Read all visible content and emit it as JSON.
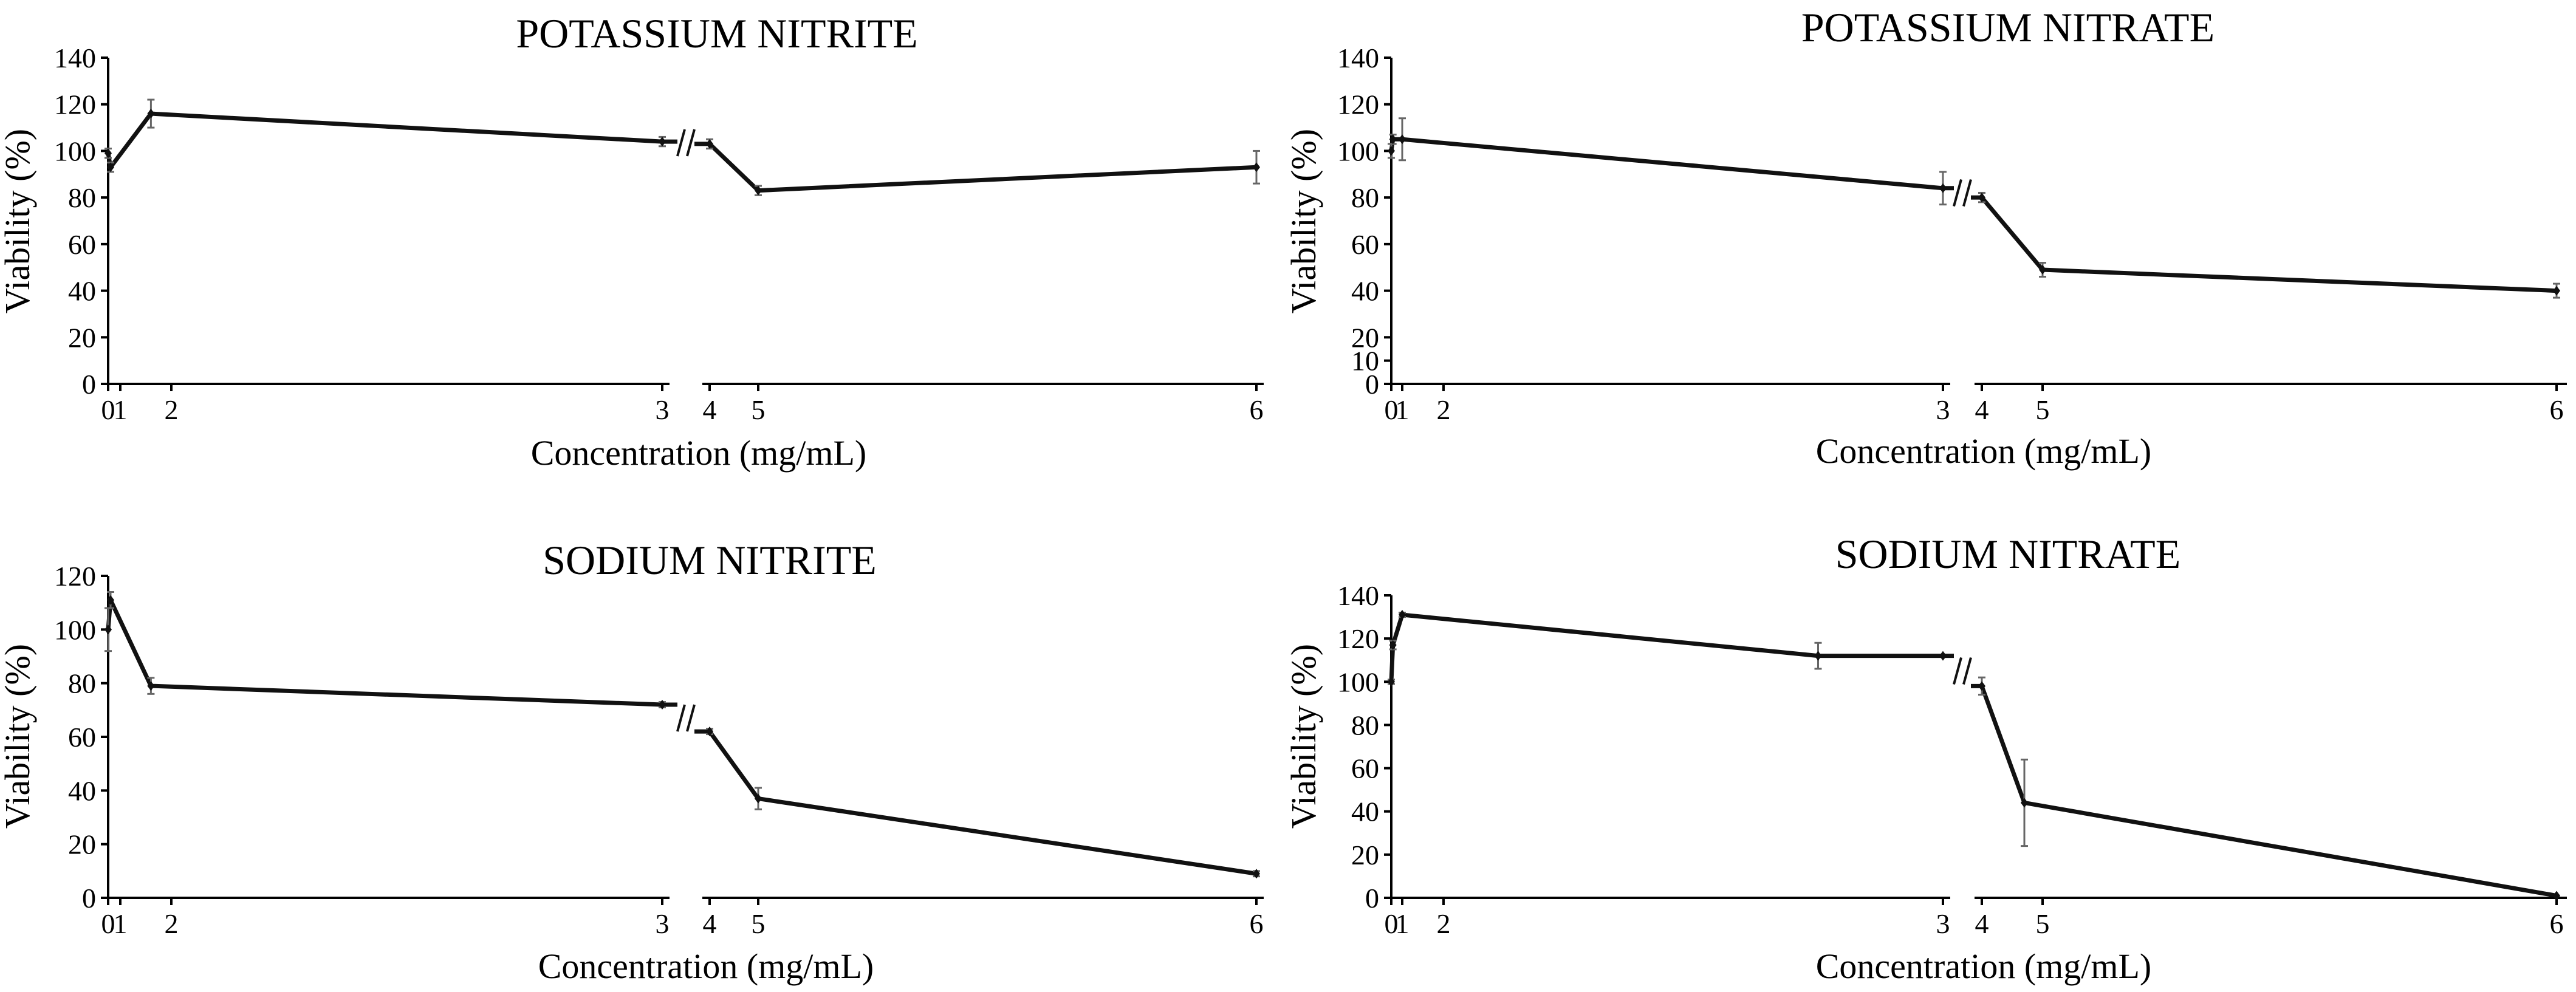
{
  "chart_data": [
    {
      "type": "line",
      "title": "POTASSIUM NITRITE",
      "xlabel": "Concentration (mg/mL)",
      "ylabel": "Viability (%)",
      "ylim": [
        0,
        140
      ],
      "yticks": [
        0,
        20,
        40,
        60,
        80,
        100,
        120,
        140
      ],
      "xticks": [
        0,
        1,
        2,
        3,
        4,
        5,
        6
      ],
      "grid": false,
      "axis_break_between": [
        3,
        4
      ],
      "series": [
        {
          "name": "Viability",
          "x": [
            0,
            0.2,
            1.6,
            3.0,
            4.0,
            5.0,
            6.0
          ],
          "y": [
            99,
            93,
            116,
            104,
            103,
            83,
            93
          ],
          "err": [
            2,
            2,
            6,
            2,
            2,
            2,
            7
          ]
        }
      ]
    },
    {
      "type": "line",
      "title": "POTASSIUM NITRATE",
      "xlabel": "Concentration (mg/mL)",
      "ylabel": "Viability (%)",
      "ylim": [
        0,
        140
      ],
      "yticks": [
        0,
        10,
        20,
        40,
        60,
        80,
        100,
        120,
        140
      ],
      "xticks": [
        0,
        1,
        2,
        3,
        4,
        5,
        6
      ],
      "grid": false,
      "axis_break_between": [
        3,
        4
      ],
      "series": [
        {
          "name": "Viability",
          "x": [
            0,
            0.15,
            1.0,
            3.0,
            4.0,
            5.0,
            6.0
          ],
          "y": [
            100,
            105,
            105,
            84,
            80,
            49,
            40
          ],
          "err": [
            3,
            2,
            9,
            7,
            2,
            3,
            3
          ]
        }
      ]
    },
    {
      "type": "line",
      "title": "SODIUM NITRITE",
      "xlabel": "Concentration (mg/mL)",
      "ylabel": "Viability (%)",
      "ylim": [
        0,
        120
      ],
      "yticks": [
        0,
        20,
        40,
        60,
        80,
        100,
        120
      ],
      "xticks": [
        0,
        1,
        2,
        3,
        4,
        5,
        6
      ],
      "grid": false,
      "axis_break_between": [
        3,
        4
      ],
      "series": [
        {
          "name": "Viability",
          "x": [
            0,
            0.2,
            1.6,
            3.0,
            4.0,
            5.0,
            6.0
          ],
          "y": [
            100,
            111,
            79,
            72,
            62,
            37,
            9
          ],
          "err": [
            8,
            3,
            3,
            1,
            1,
            4,
            1
          ]
        }
      ]
    },
    {
      "type": "line",
      "title": "SODIUM NITRATE",
      "xlabel": "Concentration (mg/mL)",
      "ylabel": "Viability (%)",
      "ylim": [
        0,
        140
      ],
      "yticks": [
        0,
        20,
        40,
        60,
        80,
        100,
        120,
        140
      ],
      "xticks": [
        0,
        1,
        2,
        3,
        4,
        5,
        6
      ],
      "grid": false,
      "axis_break_between": [
        3,
        4
      ],
      "series": [
        {
          "name": "Viability",
          "x": [
            0,
            0.15,
            1.0,
            2.75,
            3.0,
            4.0,
            4.7,
            6.0
          ],
          "y": [
            100,
            117,
            131,
            112,
            112,
            98,
            44,
            1
          ],
          "err": [
            1,
            2,
            1,
            6,
            0,
            4,
            20,
            0
          ]
        }
      ]
    }
  ]
}
